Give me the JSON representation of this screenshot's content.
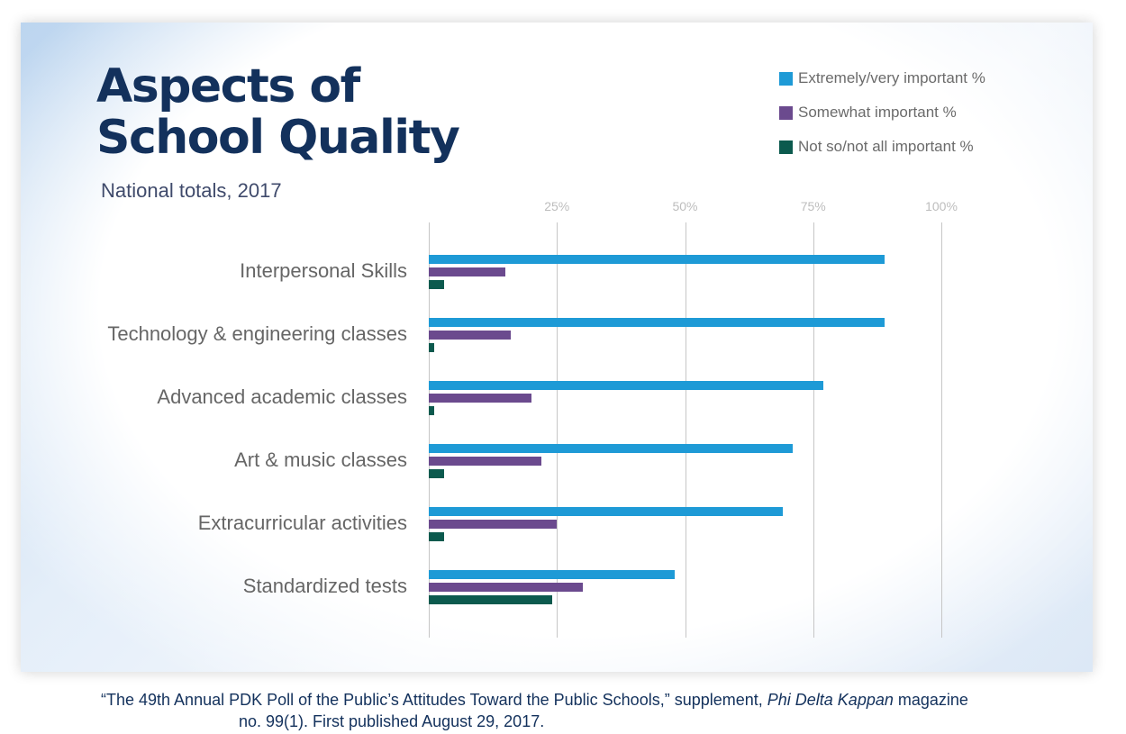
{
  "header": {
    "title_line1": "Aspects of",
    "title_line2": "School Quality",
    "subtitle": "National totals, 2017"
  },
  "legend": [
    {
      "label": "Extremely/very important %",
      "color": "#1e9ad6"
    },
    {
      "label": "Somewhat important %",
      "color": "#6b4a8e"
    },
    {
      "label": "Not so/not all important %",
      "color": "#0c5a4e"
    }
  ],
  "axis": {
    "ticks": [
      "25%",
      "50%",
      "75%",
      "100%"
    ]
  },
  "citation": {
    "line1_pre": "“The 49th Annual PDK Poll of the Public’s Attitudes Toward the Public Schools,” supplement, ",
    "line1_italic": "Phi Delta Kappan",
    "line1_post": " magazine",
    "line2": "no. 99(1). First published August 29, 2017."
  },
  "chart_data": {
    "type": "bar",
    "orientation": "horizontal",
    "title": "Aspects of School Quality",
    "subtitle": "National totals, 2017",
    "xlabel": "",
    "ylabel": "",
    "xlim": [
      0,
      100
    ],
    "x_ticks": [
      "25%",
      "50%",
      "75%",
      "100%"
    ],
    "grid": true,
    "legend_position": "top-right",
    "categories": [
      "Interpersonal Skills",
      "Technology & engineering classes",
      "Advanced academic classes",
      "Art & music classes",
      "Extracurricular activities",
      "Standardized tests"
    ],
    "series": [
      {
        "name": "Extremely/very important %",
        "color": "#1e9ad6",
        "values": [
          89,
          89,
          77,
          71,
          69,
          48
        ]
      },
      {
        "name": "Somewhat important %",
        "color": "#6b4a8e",
        "values": [
          15,
          16,
          20,
          22,
          25,
          30
        ]
      },
      {
        "name": "Not so/not all important %",
        "color": "#0c5a4e",
        "values": [
          3,
          1,
          1,
          3,
          3,
          24
        ]
      }
    ]
  }
}
